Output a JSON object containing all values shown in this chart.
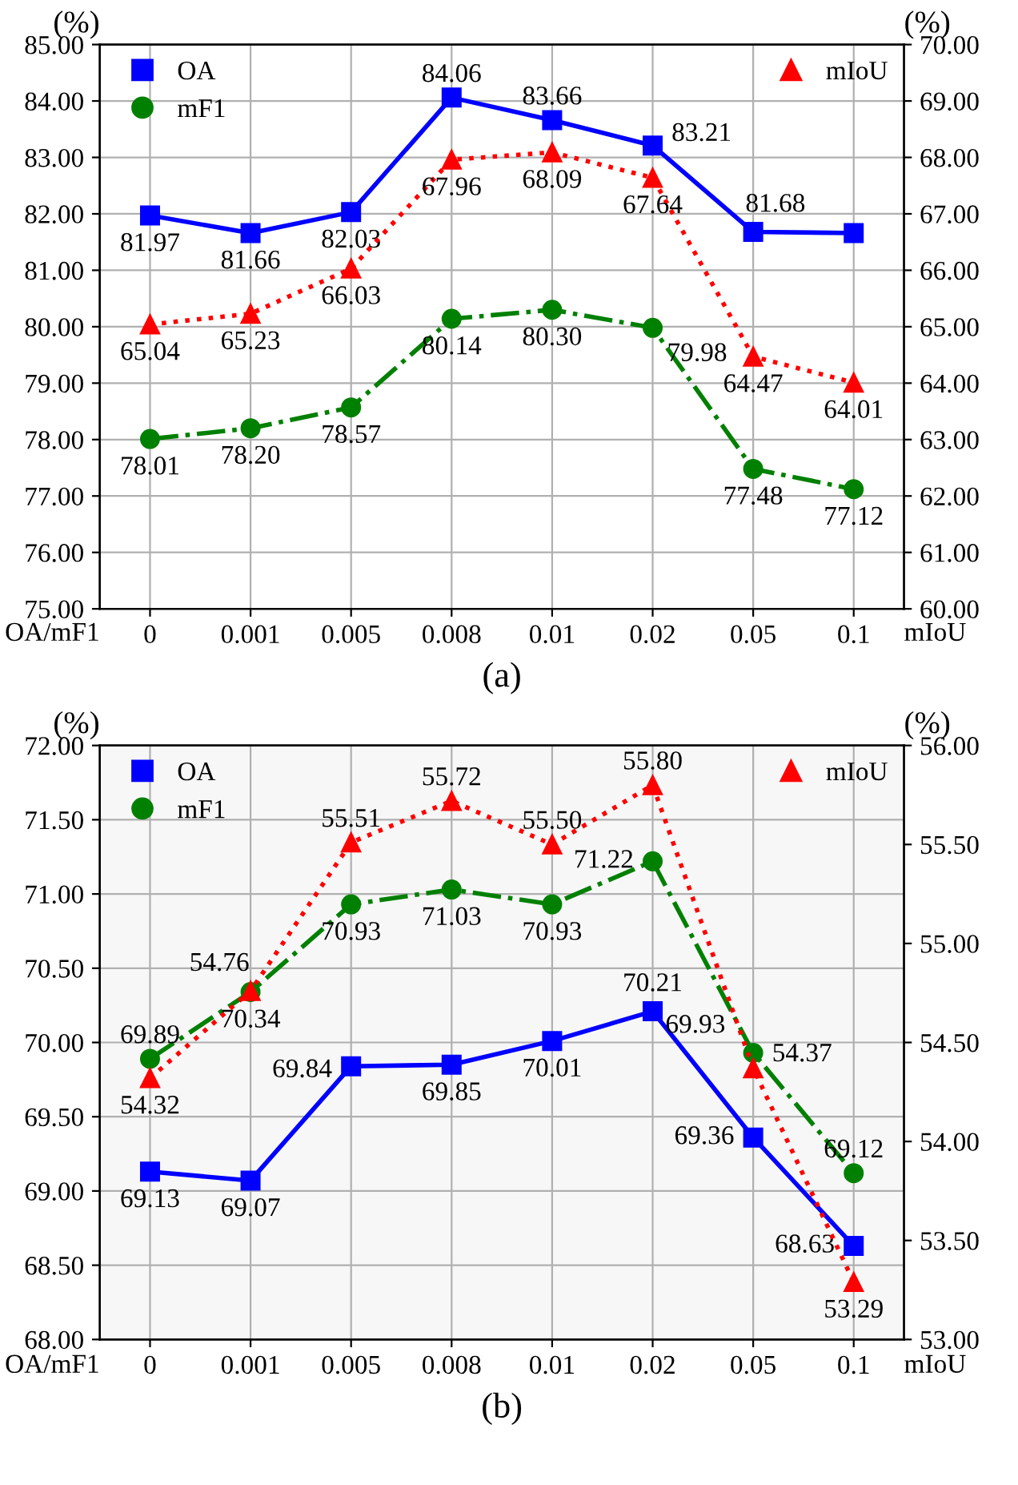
{
  "chart_data": [
    {
      "type": "line",
      "xlabel": "(a)",
      "ylabel": "(%)",
      "y2label": "(%)",
      "annotations": [
        "OA/mF1",
        "mIoU"
      ],
      "categories": [
        "0",
        "0.001",
        "0.005",
        "0.008",
        "0.01",
        "0.02",
        "0.05",
        "0.1"
      ],
      "series": [
        {
          "name": "OA",
          "color": "#0000ff",
          "marker": "square",
          "line_style": "solid",
          "values": [
            81.97,
            81.66,
            82.03,
            84.06,
            83.66,
            83.21,
            81.68,
            81.66
          ],
          "value_labels": [
            "81.97",
            "81.66",
            "82.03",
            "84.06",
            "83.66",
            "83.21",
            "81.68",
            null
          ]
        },
        {
          "name": "mF1",
          "color": "#008000",
          "marker": "circle",
          "line_style": "dashdot",
          "values": [
            78.01,
            78.2,
            78.57,
            80.14,
            80.3,
            79.98,
            77.48,
            77.12
          ],
          "value_labels": [
            "78.01",
            "78.20",
            "78.57",
            "80.14",
            "80.30",
            "79.98",
            "77.48",
            "77.12"
          ]
        },
        {
          "name": "mIoU",
          "color": "#ff0000",
          "marker": "triangle",
          "line_style": "dotted",
          "axis": "y2",
          "values": [
            65.04,
            65.23,
            66.03,
            67.96,
            68.09,
            67.64,
            64.47,
            64.01
          ],
          "value_labels": [
            "65.04",
            "65.23",
            "66.03",
            "67.96",
            "68.09",
            "67.64",
            "64.47",
            "64.01"
          ]
        }
      ],
      "ylim": [
        75,
        85
      ],
      "yticks": [
        {
          "value": 75,
          "label": "75.00"
        },
        {
          "value": 76,
          "label": "76.00"
        },
        {
          "value": 77,
          "label": "77.00"
        },
        {
          "value": 78,
          "label": "78.00"
        },
        {
          "value": 79,
          "label": "79.00"
        },
        {
          "value": 80,
          "label": "80.00"
        },
        {
          "value": 81,
          "label": "81.00"
        },
        {
          "value": 82,
          "label": "82.00"
        },
        {
          "value": 83,
          "label": "83.00"
        },
        {
          "value": 84,
          "label": "84.00"
        },
        {
          "value": 85,
          "label": "85.00"
        }
      ],
      "y2lim": [
        60,
        70
      ],
      "y2ticks": [
        {
          "value": 60,
          "label": "60.00"
        },
        {
          "value": 61,
          "label": "61.00"
        },
        {
          "value": 62,
          "label": "62.00"
        },
        {
          "value": 63,
          "label": "63.00"
        },
        {
          "value": 64,
          "label": "64.00"
        },
        {
          "value": 65,
          "label": "65.00"
        },
        {
          "value": 66,
          "label": "66.00"
        },
        {
          "value": 67,
          "label": "67.00"
        },
        {
          "value": 68,
          "label": "68.00"
        },
        {
          "value": 69,
          "label": "69.00"
        },
        {
          "value": 70,
          "label": "70.00"
        }
      ],
      "grid": true,
      "legend": "top left"
    },
    {
      "type": "line",
      "xlabel": "(b)",
      "ylabel": "(%)",
      "y2label": "(%)",
      "annotations": [
        "OA/mF1",
        "mIoU"
      ],
      "categories": [
        "0",
        "0.001",
        "0.005",
        "0.008",
        "0.01",
        "0.02",
        "0.05",
        "0.1"
      ],
      "series": [
        {
          "name": "OA",
          "color": "#0000ff",
          "marker": "square",
          "line_style": "solid",
          "values": [
            69.13,
            69.07,
            69.84,
            69.85,
            70.01,
            70.21,
            69.36,
            68.63
          ],
          "value_labels": [
            "69.13",
            "69.07",
            "69.84",
            "69.85",
            "70.01",
            "70.21",
            "69.36",
            "68.63"
          ]
        },
        {
          "name": "mF1",
          "color": "#008000",
          "marker": "circle",
          "line_style": "dashdot",
          "values": [
            69.89,
            70.34,
            70.93,
            71.03,
            70.93,
            71.22,
            69.93,
            69.12
          ],
          "value_labels": [
            "69.89",
            "70.34",
            "70.93",
            "71.03",
            "70.93",
            "71.22",
            "69.93",
            "69.12"
          ]
        },
        {
          "name": "mIoU",
          "color": "#ff0000",
          "marker": "triangle",
          "line_style": "dotted",
          "axis": "y2",
          "values": [
            54.32,
            54.76,
            55.51,
            55.72,
            55.5,
            55.8,
            54.37,
            53.29
          ],
          "value_labels": [
            "54.32",
            "54.76",
            "55.51",
            "55.72",
            "55.50",
            "55.80",
            "54.37",
            "53.29"
          ]
        }
      ],
      "ylim": [
        68,
        72
      ],
      "yticks": [
        {
          "value": 68,
          "label": "68.00"
        },
        {
          "value": 68.5,
          "label": "68.50"
        },
        {
          "value": 69,
          "label": "69.00"
        },
        {
          "value": 69.5,
          "label": "69.50"
        },
        {
          "value": 70,
          "label": "70.00"
        },
        {
          "value": 70.5,
          "label": "70.50"
        },
        {
          "value": 71,
          "label": "71.00"
        },
        {
          "value": 71.5,
          "label": "71.50"
        },
        {
          "value": 72,
          "label": "72.00"
        }
      ],
      "y2lim": [
        53,
        56
      ],
      "y2ticks": [
        {
          "value": 53,
          "label": "53.00"
        },
        {
          "value": 53.5,
          "label": "53.50"
        },
        {
          "value": 54,
          "label": "54.00"
        },
        {
          "value": 54.5,
          "label": "54.50"
        },
        {
          "value": 55,
          "label": "55.00"
        },
        {
          "value": 55.5,
          "label": "55.50"
        },
        {
          "value": 56,
          "label": "56.00"
        }
      ],
      "grid": true,
      "legend": "top left"
    }
  ]
}
